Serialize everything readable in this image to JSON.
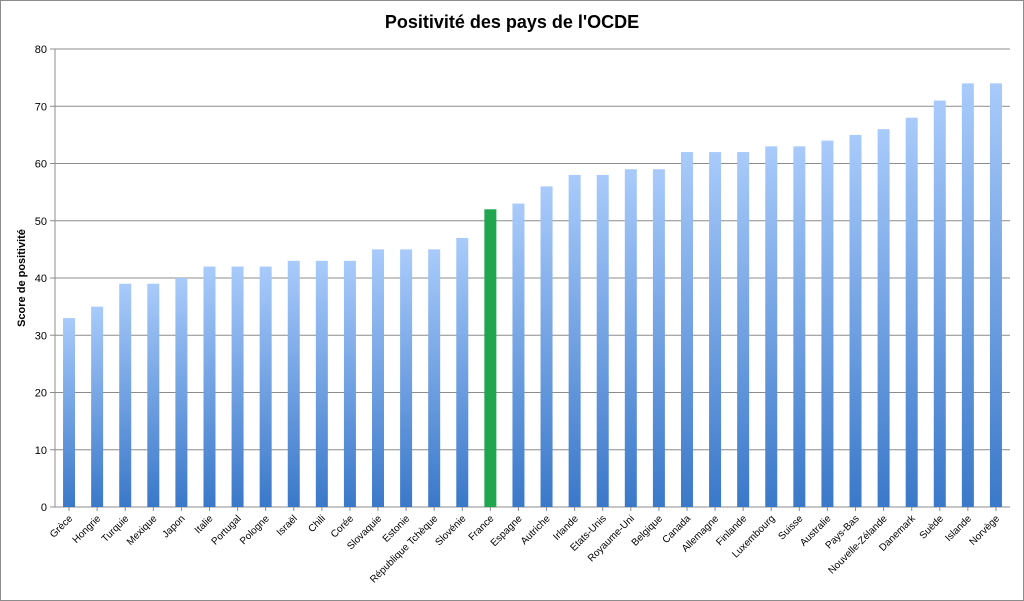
{
  "chart_data": {
    "type": "bar",
    "title": "Positivité des pays de l'OCDE",
    "xlabel": "",
    "ylabel": "Score de positivité",
    "ylim": [
      0,
      80
    ],
    "yticks": [
      0,
      10,
      20,
      30,
      40,
      50,
      60,
      70,
      80
    ],
    "grid": true,
    "legend": "none",
    "categories": [
      "Grèce",
      "Hongrie",
      "Turquie",
      "Mexique",
      "Japon",
      "Italie",
      "Portugal",
      "Pologne",
      "Israël",
      "Chili",
      "Corée",
      "Slovaquie",
      "Estonie",
      "République Tchèque",
      "Slovénie",
      "France",
      "Espagne",
      "Autriche",
      "Irlande",
      "Etats-Unis",
      "Royaume-Uni",
      "Belgique",
      "Canada",
      "Allemagne",
      "Finlande",
      "Luxembourg",
      "Suisse",
      "Australie",
      "Pays-Bas",
      "Nouvelle-Zélande",
      "Danemark",
      "Suède",
      "Islande",
      "Norvège"
    ],
    "values": [
      33,
      35,
      39,
      39,
      40,
      42,
      42,
      42,
      43,
      43,
      43,
      45,
      45,
      45,
      47,
      52,
      53,
      56,
      58,
      58,
      59,
      59,
      62,
      62,
      62,
      63,
      63,
      64,
      65,
      66,
      68,
      71,
      74,
      74
    ],
    "highlight": "France",
    "colors": {
      "bar_top": "#a9cbfb",
      "bar_bottom": "#3a78c9",
      "highlight": "#1fa64e",
      "grid": "#8c8c8c"
    }
  }
}
